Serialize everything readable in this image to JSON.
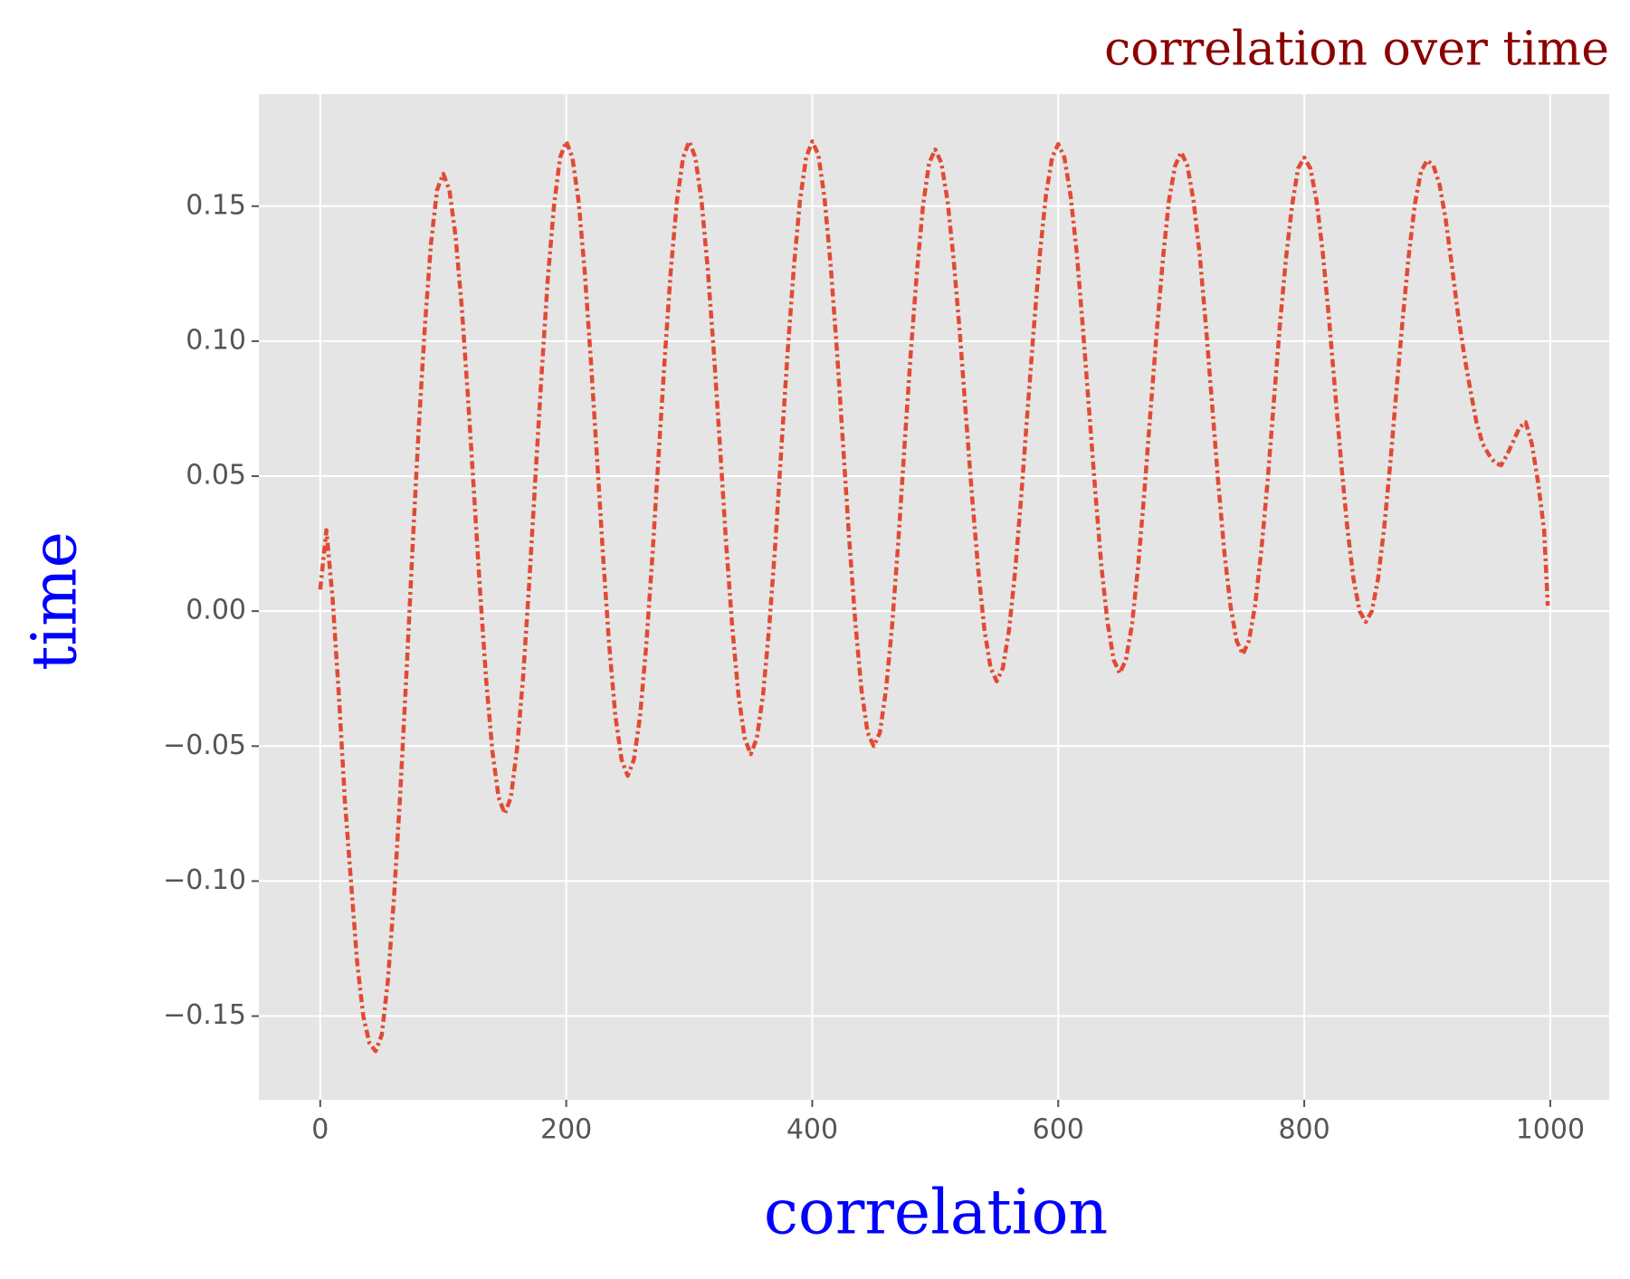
{
  "chart_data": {
    "type": "line",
    "title": "correlation over time",
    "x_label": "correlation",
    "y_label": "time",
    "color": "#e24a33",
    "grid": true,
    "xlim": [
      -49.9,
      1047.9
    ],
    "ylim": [
      -0.181,
      0.1915
    ],
    "xticks": [
      0,
      200,
      400,
      600,
      800,
      1000
    ],
    "yticks": [
      {
        "value": -0.15,
        "label": "−0.15"
      },
      {
        "value": -0.1,
        "label": "−0.10"
      },
      {
        "value": -0.05,
        "label": "−0.05"
      },
      {
        "value": 0,
        "label": "0.00"
      },
      0.05,
      {
        "value": 0.1,
        "label": "0.10"
      },
      0.15
    ],
    "x": [
      0,
      5,
      10,
      15,
      20,
      25,
      30,
      35,
      40,
      45,
      50,
      55,
      60,
      65,
      70,
      75,
      80,
      85,
      90,
      95,
      100,
      105,
      110,
      115,
      120,
      125,
      130,
      135,
      140,
      145,
      150,
      155,
      160,
      165,
      170,
      175,
      180,
      185,
      190,
      195,
      200,
      205,
      210,
      215,
      220,
      225,
      230,
      235,
      240,
      245,
      250,
      255,
      260,
      265,
      270,
      275,
      280,
      285,
      290,
      295,
      300,
      305,
      310,
      315,
      320,
      325,
      330,
      335,
      340,
      345,
      350,
      355,
      360,
      365,
      370,
      375,
      380,
      385,
      390,
      395,
      400,
      405,
      410,
      415,
      420,
      425,
      430,
      435,
      440,
      445,
      450,
      455,
      460,
      465,
      470,
      475,
      480,
      485,
      490,
      495,
      500,
      505,
      510,
      515,
      520,
      525,
      530,
      535,
      540,
      545,
      550,
      555,
      560,
      565,
      570,
      575,
      580,
      585,
      590,
      595,
      600,
      605,
      610,
      615,
      620,
      625,
      630,
      635,
      640,
      645,
      650,
      655,
      660,
      665,
      670,
      675,
      680,
      685,
      690,
      695,
      700,
      705,
      710,
      715,
      720,
      725,
      730,
      735,
      740,
      745,
      750,
      755,
      760,
      765,
      770,
      775,
      780,
      785,
      790,
      795,
      800,
      805,
      810,
      815,
      820,
      825,
      830,
      835,
      840,
      845,
      850,
      855,
      860,
      865,
      870,
      875,
      880,
      885,
      890,
      895,
      900,
      905,
      910,
      915,
      920,
      925,
      930,
      935,
      940,
      945,
      950,
      955,
      960,
      965,
      970,
      975,
      980,
      985,
      990,
      995,
      998
    ],
    "values": [
      0.008,
      0.03,
      0.005,
      -0.03,
      -0.07,
      -0.1,
      -0.13,
      -0.15,
      -0.16,
      -0.163,
      -0.157,
      -0.137,
      -0.106,
      -0.068,
      -0.024,
      0.023,
      0.067,
      0.105,
      0.136,
      0.156,
      0.162,
      0.156,
      0.139,
      0.113,
      0.08,
      0.044,
      0.007,
      -0.026,
      -0.052,
      -0.069,
      -0.075,
      -0.069,
      -0.051,
      -0.024,
      0.011,
      0.05,
      0.088,
      0.123,
      0.15,
      0.168,
      0.174,
      0.168,
      0.152,
      0.126,
      0.093,
      0.057,
      0.02,
      -0.013,
      -0.039,
      -0.055,
      -0.061,
      -0.055,
      -0.039,
      -0.013,
      0.02,
      0.057,
      0.093,
      0.126,
      0.152,
      0.168,
      0.174,
      0.168,
      0.152,
      0.127,
      0.096,
      0.061,
      0.025,
      -0.006,
      -0.031,
      -0.047,
      -0.053,
      -0.047,
      -0.031,
      -0.006,
      0.025,
      0.061,
      0.096,
      0.127,
      0.152,
      0.168,
      0.174,
      0.169,
      0.153,
      0.128,
      0.097,
      0.062,
      0.027,
      -0.004,
      -0.029,
      -0.045,
      -0.05,
      -0.045,
      -0.029,
      -0.005,
      0.026,
      0.061,
      0.095,
      0.125,
      0.15,
      0.166,
      0.171,
      0.166,
      0.152,
      0.13,
      0.103,
      0.072,
      0.042,
      0.015,
      -0.007,
      -0.021,
      -0.026,
      -0.021,
      -0.007,
      0.015,
      0.043,
      0.074,
      0.104,
      0.132,
      0.154,
      0.168,
      0.173,
      0.168,
      0.154,
      0.133,
      0.105,
      0.075,
      0.045,
      0.017,
      -0.004,
      -0.018,
      -0.023,
      -0.018,
      -0.005,
      0.017,
      0.044,
      0.074,
      0.103,
      0.13,
      0.152,
      0.165,
      0.17,
      0.165,
      0.152,
      0.132,
      0.106,
      0.077,
      0.048,
      0.022,
      0.002,
      -0.011,
      -0.016,
      -0.011,
      0.002,
      0.022,
      0.047,
      0.076,
      0.105,
      0.13,
      0.15,
      0.164,
      0.168,
      0.164,
      0.152,
      0.133,
      0.109,
      0.082,
      0.055,
      0.031,
      0.012,
      0.0,
      -0.004,
      0.0,
      0.012,
      0.031,
      0.055,
      0.082,
      0.108,
      0.132,
      0.151,
      0.163,
      0.167,
      0.165,
      0.158,
      0.145,
      0.128,
      0.11,
      0.095,
      0.082,
      0.07,
      0.062,
      0.058,
      0.055,
      0.054,
      0.058,
      0.063,
      0.068,
      0.07,
      0.062,
      0.048,
      0.03,
      0.002
    ]
  }
}
